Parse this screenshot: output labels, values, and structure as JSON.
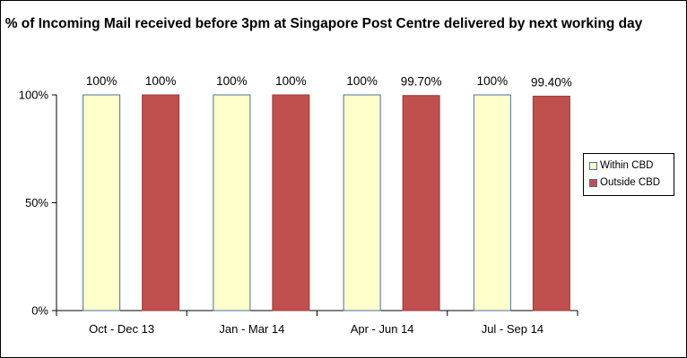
{
  "chart_data": {
    "type": "bar",
    "title": "% of Incoming Mail received before 3pm at Singapore Post Centre delivered by next working day",
    "categories": [
      "Oct - Dec 13",
      "Jan - Mar 14",
      "Apr - Jun 14",
      "Jul - Sep 14"
    ],
    "series": [
      {
        "name": "Within CBD",
        "values": [
          100,
          100,
          100,
          100
        ],
        "labels": [
          "100%",
          "100%",
          "100%",
          "100%"
        ],
        "color": "#ffffcc"
      },
      {
        "name": "Outside CBD",
        "values": [
          100,
          100,
          99.7,
          99.4
        ],
        "labels": [
          "100%",
          "100%",
          "99.70%",
          "99.40%"
        ],
        "color": "#c0504d"
      }
    ],
    "yticks": [
      {
        "value": 0,
        "label": "0%"
      },
      {
        "value": 50,
        "label": "50%"
      },
      {
        "value": 100,
        "label": "100%"
      }
    ],
    "ylim": [
      0,
      100
    ],
    "xlabel": "",
    "ylabel": "",
    "grid": false,
    "legend_position": "right"
  }
}
